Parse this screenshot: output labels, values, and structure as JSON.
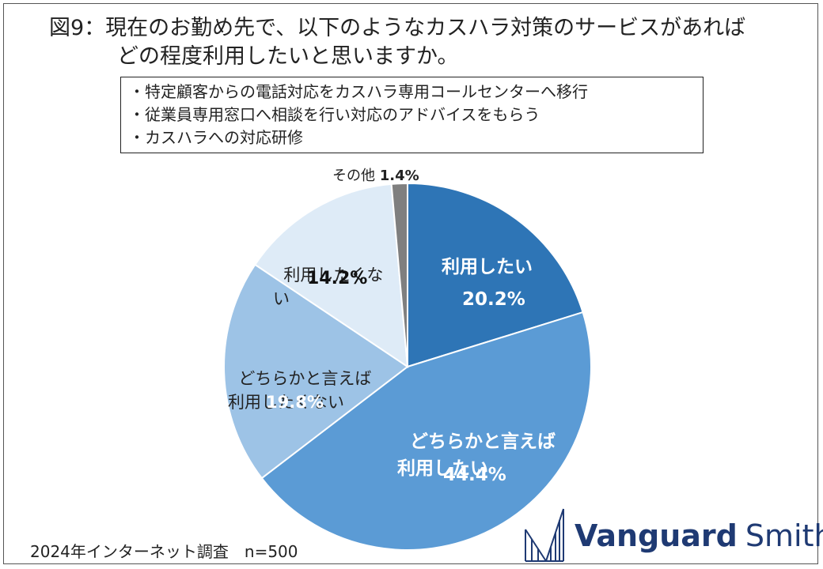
{
  "title": {
    "line1": "図9：現在のお勤め先で、以下のようなカスハラ対策のサービスがあれば",
    "line2": "どの程度利用したいと思いますか。"
  },
  "notes": [
    "・特定顧客からの電話対応をカスハラ専用コールセンターへ移行",
    "・従業員専用窓口へ相談を行い対応のアドバイスをもらう",
    "・カスハラへの対応研修"
  ],
  "chart_data": {
    "type": "pie",
    "slices": [
      {
        "label": "利用したい",
        "value": 20.2,
        "value_text": "20.2%",
        "color": "#2e75b6"
      },
      {
        "label": "どちらかと言えば\n利用したい",
        "value": 44.4,
        "value_text": "44.4%",
        "color": "#5b9bd5"
      },
      {
        "label": "どちらかと言えば\n利用したくない",
        "value": 19.8,
        "value_text": "19.8%",
        "color": "#9dc3e6"
      },
      {
        "label": "利用したくな\nい",
        "value": 14.2,
        "value_text": "14.2%",
        "color": "#deebf7"
      },
      {
        "label": "その他",
        "value": 1.4,
        "value_text": "1.4%",
        "color": "#7f7f7f"
      }
    ]
  },
  "footer": "2024年インターネット調査　n=500",
  "logo": {
    "word1": "Vanguard",
    "word2": "Smith",
    "color": "#1f3a73"
  }
}
